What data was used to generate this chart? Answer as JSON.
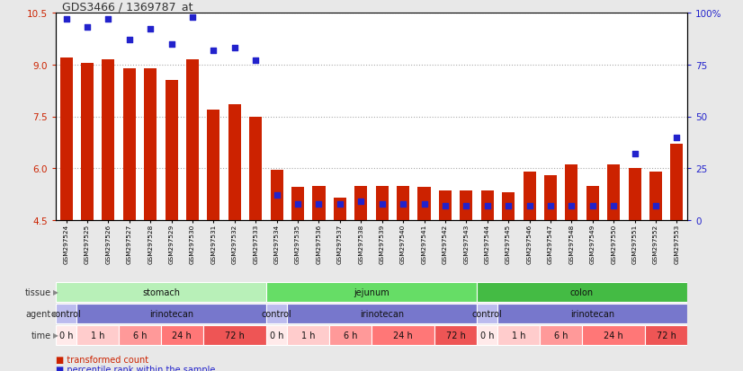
{
  "title": "GDS3466 / 1369787_at",
  "samples": [
    "GSM297524",
    "GSM297525",
    "GSM297526",
    "GSM297527",
    "GSM297528",
    "GSM297529",
    "GSM297530",
    "GSM297531",
    "GSM297532",
    "GSM297533",
    "GSM297534",
    "GSM297535",
    "GSM297536",
    "GSM297537",
    "GSM297538",
    "GSM297539",
    "GSM297540",
    "GSM297541",
    "GSM297542",
    "GSM297543",
    "GSM297544",
    "GSM297545",
    "GSM297546",
    "GSM297547",
    "GSM297548",
    "GSM297549",
    "GSM297550",
    "GSM297551",
    "GSM297552",
    "GSM297553"
  ],
  "transformed_count": [
    9.2,
    9.05,
    9.15,
    8.9,
    8.9,
    8.55,
    9.15,
    7.7,
    7.85,
    7.5,
    5.95,
    5.45,
    5.5,
    5.15,
    5.5,
    5.5,
    5.5,
    5.45,
    5.35,
    5.35,
    5.35,
    5.3,
    5.9,
    5.8,
    6.1,
    5.5,
    6.1,
    6.0,
    5.9,
    6.7
  ],
  "percentile_rank": [
    97,
    93,
    97,
    87,
    92,
    85,
    98,
    82,
    83,
    77,
    12,
    8,
    8,
    8,
    9,
    8,
    8,
    8,
    7,
    7,
    7,
    7,
    7,
    7,
    7,
    7,
    7,
    32,
    7,
    40
  ],
  "ylim_left": [
    4.5,
    10.5
  ],
  "ylim_right": [
    0,
    100
  ],
  "yticks_left": [
    4.5,
    6.0,
    7.5,
    9.0,
    10.5
  ],
  "yticks_right": [
    0,
    25,
    50,
    75,
    100
  ],
  "ytick_labels_right": [
    "0",
    "25",
    "50",
    "75",
    "100%"
  ],
  "bar_color": "#cc2200",
  "dot_color": "#2222cc",
  "background_color": "#e8e8e8",
  "plot_bg_color": "#ffffff",
  "tissues": [
    {
      "label": "stomach",
      "start": 0,
      "end": 9,
      "color": "#b8f0b8"
    },
    {
      "label": "jejunum",
      "start": 10,
      "end": 19,
      "color": "#66dd66"
    },
    {
      "label": "colon",
      "start": 20,
      "end": 29,
      "color": "#44bb44"
    }
  ],
  "agents": [
    {
      "label": "control",
      "start": 0,
      "end": 0,
      "color": "#bbbbee"
    },
    {
      "label": "irinotecan",
      "start": 1,
      "end": 9,
      "color": "#7777cc"
    },
    {
      "label": "control",
      "start": 10,
      "end": 10,
      "color": "#bbbbee"
    },
    {
      "label": "irinotecan",
      "start": 11,
      "end": 19,
      "color": "#7777cc"
    },
    {
      "label": "control",
      "start": 20,
      "end": 20,
      "color": "#bbbbee"
    },
    {
      "label": "irinotecan",
      "start": 21,
      "end": 29,
      "color": "#7777cc"
    }
  ],
  "times": [
    {
      "label": "0 h",
      "start": 0,
      "end": 0,
      "color": "#ffeaea"
    },
    {
      "label": "1 h",
      "start": 1,
      "end": 2,
      "color": "#ffcccc"
    },
    {
      "label": "6 h",
      "start": 3,
      "end": 4,
      "color": "#ff9999"
    },
    {
      "label": "24 h",
      "start": 5,
      "end": 6,
      "color": "#ff7777"
    },
    {
      "label": "72 h",
      "start": 7,
      "end": 9,
      "color": "#ee5555"
    },
    {
      "label": "0 h",
      "start": 10,
      "end": 10,
      "color": "#ffeaea"
    },
    {
      "label": "1 h",
      "start": 11,
      "end": 12,
      "color": "#ffcccc"
    },
    {
      "label": "6 h",
      "start": 13,
      "end": 14,
      "color": "#ff9999"
    },
    {
      "label": "24 h",
      "start": 15,
      "end": 17,
      "color": "#ff7777"
    },
    {
      "label": "72 h",
      "start": 18,
      "end": 19,
      "color": "#ee5555"
    },
    {
      "label": "0 h",
      "start": 20,
      "end": 20,
      "color": "#ffeaea"
    },
    {
      "label": "1 h",
      "start": 21,
      "end": 22,
      "color": "#ffcccc"
    },
    {
      "label": "6 h",
      "start": 23,
      "end": 24,
      "color": "#ff9999"
    },
    {
      "label": "24 h",
      "start": 25,
      "end": 27,
      "color": "#ff7777"
    },
    {
      "label": "72 h",
      "start": 28,
      "end": 29,
      "color": "#ee5555"
    }
  ],
  "legend_items": [
    {
      "label": "transformed count",
      "color": "#cc2200"
    },
    {
      "label": "percentile rank within the sample",
      "color": "#2222cc"
    }
  ],
  "row_labels": [
    "tissue",
    "agent",
    "time"
  ],
  "row_label_color": "#333333"
}
